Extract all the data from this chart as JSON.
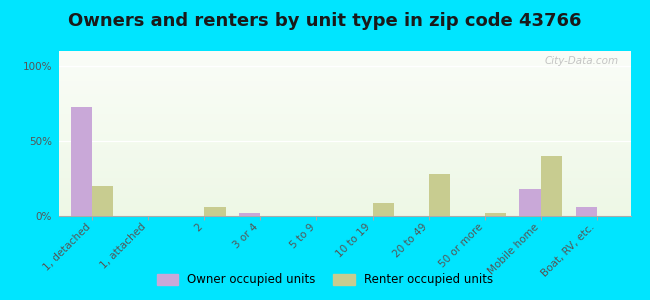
{
  "title": "Owners and renters by unit type in zip code 43766",
  "categories": [
    "1, detached",
    "1, attached",
    "2",
    "3 or 4",
    "5 to 9",
    "10 to 19",
    "20 to 49",
    "50 or more",
    "Mobile home",
    "Boat, RV, etc."
  ],
  "owner_values": [
    73,
    0,
    0,
    2,
    0,
    0,
    0,
    0,
    18,
    6
  ],
  "renter_values": [
    20,
    0,
    6,
    0,
    0,
    9,
    28,
    2,
    40,
    0
  ],
  "owner_color": "#c9a8d8",
  "renter_color": "#c8cc90",
  "outer_bg": "#00e5ff",
  "yticks": [
    0,
    50,
    100
  ],
  "ylabels": [
    "0%",
    "50%",
    "100%"
  ],
  "bar_width": 0.38,
  "legend_owner": "Owner occupied units",
  "legend_renter": "Renter occupied units",
  "title_fontsize": 13,
  "axis_fontsize": 7.5,
  "legend_fontsize": 8.5,
  "watermark": "City-Data.com"
}
